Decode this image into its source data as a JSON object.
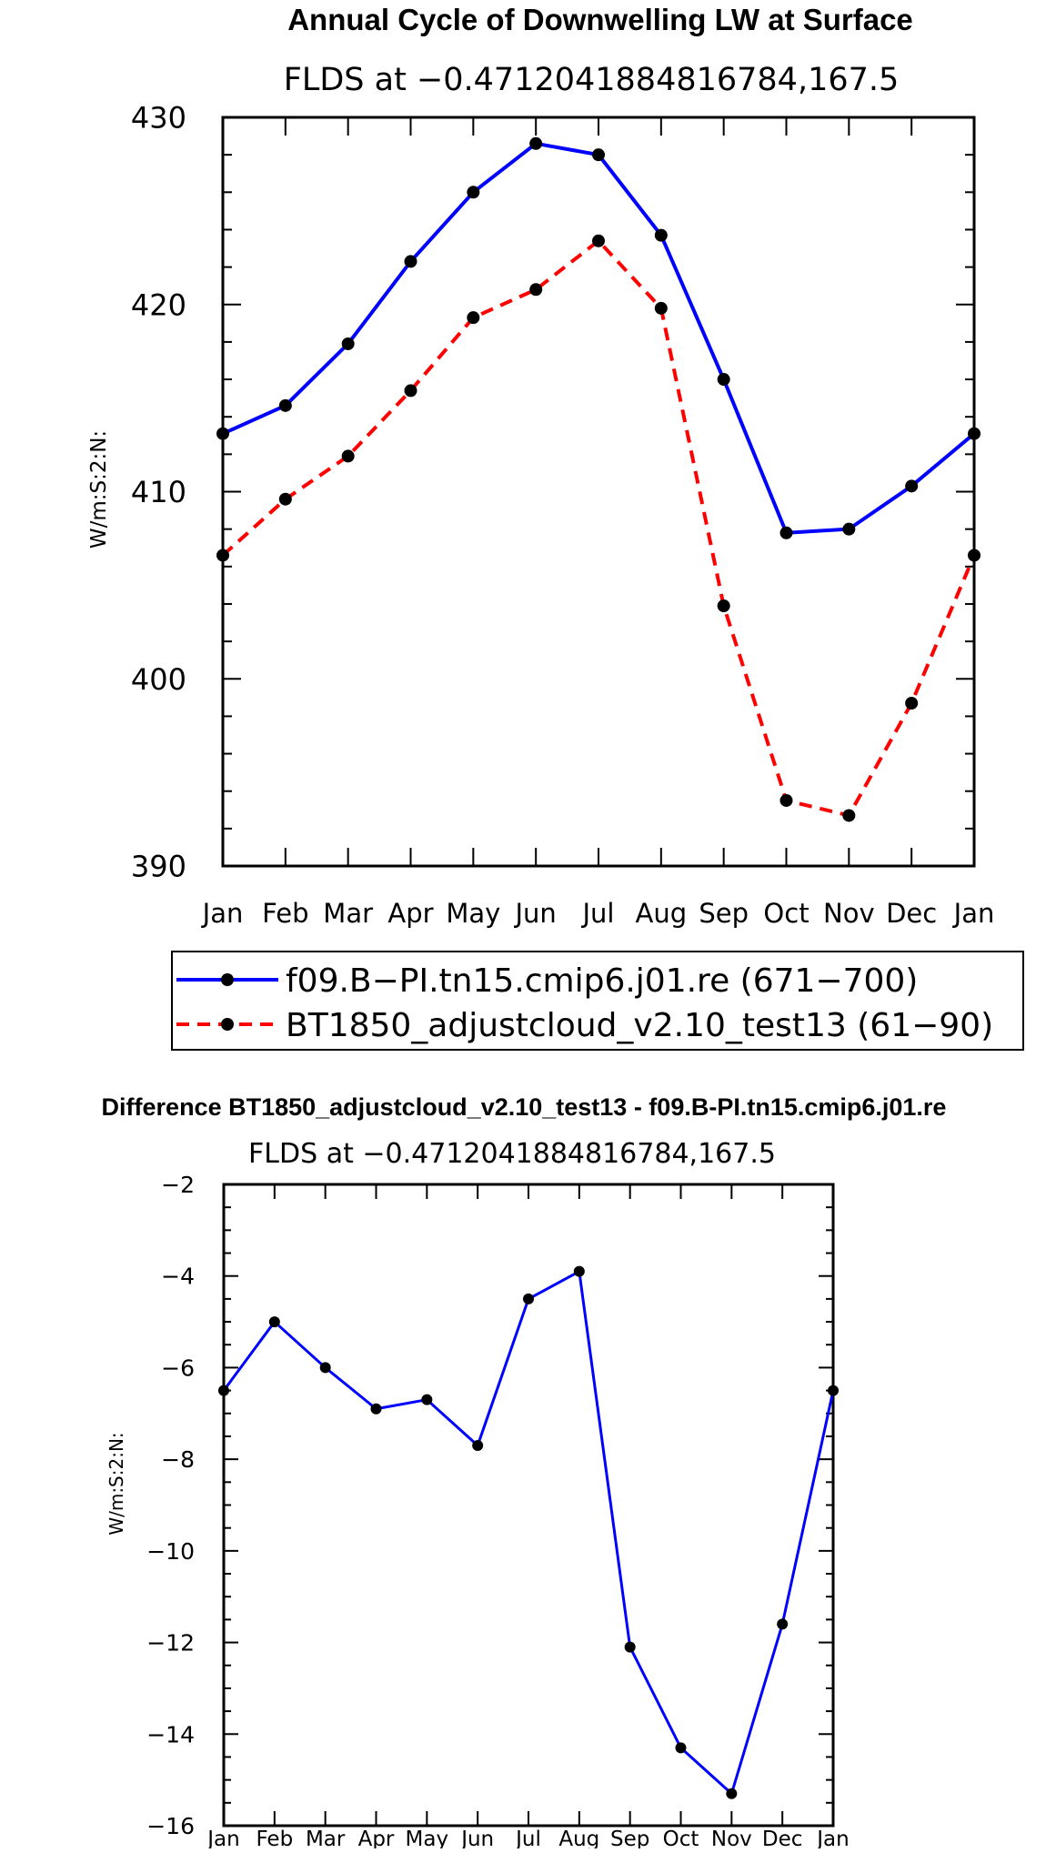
{
  "chart_data": [
    {
      "type": "line",
      "title": "Annual Cycle of Downwelling LW at Surface",
      "subtitle": "FLDS at −0.4712041884816784,167.5",
      "xlabel": "",
      "ylabel": "W/m:S:2:N:",
      "categories": [
        "Jan",
        "Feb",
        "Mar",
        "Apr",
        "May",
        "Jun",
        "Jul",
        "Aug",
        "Sep",
        "Oct",
        "Nov",
        "Dec",
        "Jan"
      ],
      "ylim": [
        390,
        430
      ],
      "yticks": [
        "390",
        "400",
        "410",
        "420",
        "430"
      ],
      "legend_position": "bottom",
      "series": [
        {
          "name": "f09.B−PI.tn15.cmip6.j01.re (671−700)",
          "color": "#0000ff",
          "dash": "solid",
          "values": [
            413.1,
            414.6,
            417.9,
            422.3,
            426.0,
            428.6,
            428.0,
            423.7,
            416.0,
            407.8,
            408.0,
            410.3,
            413.1
          ]
        },
        {
          "name": "BT1850_adjustcloud_v2.10_test13 (61−90)",
          "color": "#ff0000",
          "dash": "dashed",
          "values": [
            406.6,
            409.6,
            411.9,
            415.4,
            419.3,
            420.8,
            423.4,
            419.8,
            403.9,
            393.5,
            392.7,
            398.7,
            406.6
          ]
        }
      ]
    },
    {
      "type": "line",
      "title": "Difference BT1850_adjustcloud_v2.10_test13 - f09.B-PI.tn15.cmip6.j01.re",
      "subtitle": "FLDS at −0.4712041884816784,167.5",
      "xlabel": "",
      "ylabel": "W/m:S:2:N:",
      "categories": [
        "Jan",
        "Feb",
        "Mar",
        "Apr",
        "May",
        "Jun",
        "Jul",
        "Aug",
        "Sep",
        "Oct",
        "Nov",
        "Dec",
        "Jan"
      ],
      "ylim": [
        -16,
        -2
      ],
      "yticks": [
        "−16",
        "−14",
        "−12",
        "−10",
        "−8",
        "−6",
        "−4",
        "−2"
      ],
      "series": [
        {
          "name": "difference",
          "color": "#0000ff",
          "dash": "solid",
          "values": [
            -6.5,
            -5.0,
            -6.0,
            -6.9,
            -6.7,
            -7.7,
            -4.5,
            -3.9,
            -12.1,
            -14.3,
            -15.3,
            -11.6,
            -6.5
          ]
        }
      ]
    }
  ]
}
